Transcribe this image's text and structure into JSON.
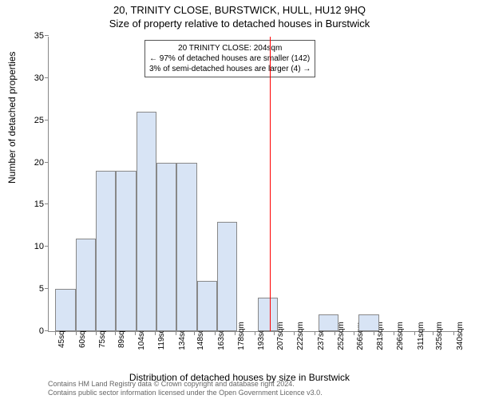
{
  "title_main": "20, TRINITY CLOSE, BURSTWICK, HULL, HU12 9HQ",
  "title_sub": "Size of property relative to detached houses in Burstwick",
  "y_axis_label": "Number of detached properties",
  "x_axis_label": "Distribution of detached houses by size in Burstwick",
  "chart": {
    "type": "histogram",
    "bar_fill": "#d8e4f5",
    "bar_stroke": "#888888",
    "marker_color": "#ff0000",
    "marker_x_value": 204,
    "ylim": [
      0,
      35
    ],
    "ytick_step": 5,
    "x_min": 40,
    "x_max": 345,
    "x_tick_labels": [
      "45sqm",
      "60sqm",
      "75sqm",
      "89sqm",
      "104sqm",
      "119sqm",
      "134sqm",
      "148sqm",
      "163sqm",
      "178sqm",
      "193sqm",
      "207sqm",
      "222sqm",
      "237sqm",
      "252sqm",
      "266sqm",
      "281sqm",
      "296sqm",
      "311sqm",
      "325sqm",
      "340sqm"
    ],
    "x_tick_values": [
      45,
      60,
      75,
      89,
      104,
      119,
      134,
      148,
      163,
      178,
      193,
      207,
      222,
      237,
      252,
      266,
      281,
      296,
      311,
      325,
      340
    ],
    "bars": [
      {
        "x": 45,
        "w": 15,
        "h": 5
      },
      {
        "x": 60,
        "w": 15,
        "h": 11
      },
      {
        "x": 75,
        "w": 15,
        "h": 19
      },
      {
        "x": 90,
        "w": 15,
        "h": 19
      },
      {
        "x": 105,
        "w": 15,
        "h": 26
      },
      {
        "x": 120,
        "w": 15,
        "h": 20
      },
      {
        "x": 135,
        "w": 15,
        "h": 20
      },
      {
        "x": 150,
        "w": 15,
        "h": 6
      },
      {
        "x": 165,
        "w": 15,
        "h": 13
      },
      {
        "x": 180,
        "w": 15,
        "h": 0
      },
      {
        "x": 195,
        "w": 15,
        "h": 4
      },
      {
        "x": 210,
        "w": 15,
        "h": 0
      },
      {
        "x": 225,
        "w": 15,
        "h": 0
      },
      {
        "x": 240,
        "w": 15,
        "h": 2
      },
      {
        "x": 255,
        "w": 15,
        "h": 0
      },
      {
        "x": 270,
        "w": 15,
        "h": 2
      },
      {
        "x": 285,
        "w": 15,
        "h": 0
      },
      {
        "x": 300,
        "w": 15,
        "h": 0
      },
      {
        "x": 315,
        "w": 15,
        "h": 0
      },
      {
        "x": 330,
        "w": 15,
        "h": 0
      }
    ]
  },
  "annotation": {
    "line1": "20 TRINITY CLOSE: 204sqm",
    "line2": "← 97% of detached houses are smaller (142)",
    "line3": "3% of semi-detached houses are larger (4) →"
  },
  "footer": {
    "line1": "Contains HM Land Registry data © Crown copyright and database right 2024.",
    "line2": "Contains public sector information licensed under the Open Government Licence v3.0."
  }
}
